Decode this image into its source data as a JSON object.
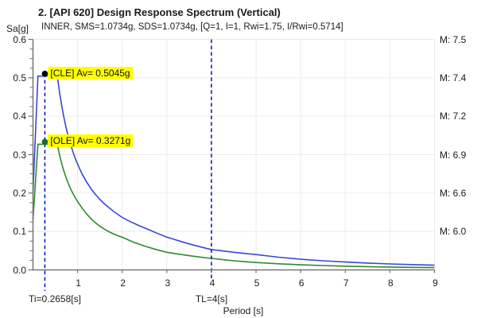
{
  "chart_data": {
    "type": "line",
    "title": "2. [API 620] Design Response Spectrum (Vertical)",
    "subtitle": "INNER, SMS=1.0734g, SDS=1.0734g, [Q=1, I=1, Rwi=1.75, I/Rwi=0.5714]",
    "xlabel": "Period [s]",
    "ylabel": "Sa[g]",
    "xlim": [
      0,
      9
    ],
    "ylim": [
      0,
      0.6
    ],
    "x_ticks": [
      1,
      2,
      3,
      4,
      5,
      6,
      7,
      8,
      9
    ],
    "y_ticks": [
      "0.0",
      "0.1",
      "0.2",
      "0.3",
      "0.4",
      "0.5",
      "0.6"
    ],
    "y_minor_step": 0.025,
    "grid": true,
    "right_labels": [
      {
        "value": 0.6,
        "label": "M: 7.5"
      },
      {
        "value": 0.5,
        "label": "M: 7.4"
      },
      {
        "value": 0.4,
        "label": "M: 7.2"
      },
      {
        "value": 0.3,
        "label": "M: 6.9"
      },
      {
        "value": 0.2,
        "label": "M: 6.6"
      },
      {
        "value": 0.1,
        "label": "M: 6.0"
      }
    ],
    "series": [
      {
        "name": "CLE",
        "color": "#3a46d8",
        "points": [
          [
            0,
            0.2018
          ],
          [
            0.11,
            0.5045
          ],
          [
            0.545,
            0.5045
          ],
          [
            0.575,
            0.4783
          ],
          [
            0.6,
            0.4583
          ],
          [
            0.625,
            0.44
          ],
          [
            0.65,
            0.4231
          ],
          [
            0.675,
            0.4074
          ],
          [
            0.7,
            0.3929
          ],
          [
            0.725,
            0.3793
          ],
          [
            0.75,
            0.3667
          ],
          [
            0.775,
            0.3548
          ],
          [
            0.8,
            0.3438
          ],
          [
            0.85,
            0.3235
          ],
          [
            0.9,
            0.3056
          ],
          [
            0.95,
            0.2895
          ],
          [
            1,
            0.275
          ],
          [
            1.1,
            0.25
          ],
          [
            1.2,
            0.2292
          ],
          [
            1.3,
            0.2115
          ],
          [
            1.4,
            0.1964
          ],
          [
            1.5,
            0.1833
          ],
          [
            1.6,
            0.1719
          ],
          [
            1.8,
            0.1528
          ],
          [
            2,
            0.1365
          ],
          [
            2.2,
            0.1245
          ],
          [
            2.4,
            0.114
          ],
          [
            2.6,
            0.1045
          ],
          [
            2.8,
            0.0945
          ],
          [
            3,
            0.0855
          ],
          [
            3.2,
            0.078
          ],
          [
            3.4,
            0.071
          ],
          [
            3.6,
            0.0645
          ],
          [
            3.8,
            0.0585
          ],
          [
            4,
            0.053
          ],
          [
            4.25,
            0.0495
          ],
          [
            4.5,
            0.046
          ],
          [
            4.75,
            0.0428
          ],
          [
            5,
            0.04
          ],
          [
            5.5,
            0.0331
          ],
          [
            6,
            0.0278
          ],
          [
            6.5,
            0.0237
          ],
          [
            7,
            0.0204
          ],
          [
            7.5,
            0.0178
          ],
          [
            8,
            0.0156
          ],
          [
            8.5,
            0.0138
          ],
          [
            9,
            0.0123
          ]
        ]
      },
      {
        "name": "OLE",
        "color": "#2e8b2e",
        "points": [
          [
            0,
            0.1308
          ],
          [
            0.11,
            0.3271
          ],
          [
            0.545,
            0.3271
          ],
          [
            0.575,
            0.3096
          ],
          [
            0.6,
            0.2967
          ],
          [
            0.625,
            0.2848
          ],
          [
            0.65,
            0.2738
          ],
          [
            0.675,
            0.2637
          ],
          [
            0.7,
            0.2543
          ],
          [
            0.725,
            0.2455
          ],
          [
            0.75,
            0.2373
          ],
          [
            0.775,
            0.2297
          ],
          [
            0.8,
            0.2225
          ],
          [
            0.85,
            0.2094
          ],
          [
            0.9,
            0.1978
          ],
          [
            0.95,
            0.1874
          ],
          [
            1,
            0.178
          ],
          [
            1.1,
            0.161
          ],
          [
            1.2,
            0.146
          ],
          [
            1.3,
            0.1335
          ],
          [
            1.4,
            0.1225
          ],
          [
            1.5,
            0.1135
          ],
          [
            1.6,
            0.106
          ],
          [
            1.7,
            0.0995
          ],
          [
            1.8,
            0.094
          ],
          [
            1.9,
            0.0892
          ],
          [
            2,
            0.085
          ],
          [
            2.25,
            0.0722
          ],
          [
            2.5,
            0.062
          ],
          [
            2.75,
            0.0533
          ],
          [
            3,
            0.046
          ],
          [
            3.25,
            0.0412
          ],
          [
            3.5,
            0.037
          ],
          [
            3.75,
            0.0333
          ],
          [
            4,
            0.03
          ],
          [
            4.25,
            0.0266
          ],
          [
            4.5,
            0.0237
          ],
          [
            4.75,
            0.0213
          ],
          [
            5,
            0.0192
          ],
          [
            5.5,
            0.0159
          ],
          [
            6,
            0.0133
          ],
          [
            6.5,
            0.0114
          ],
          [
            7,
            0.0098
          ],
          [
            7.5,
            0.0085
          ],
          [
            8,
            0.0075
          ],
          [
            8.5,
            0.0066
          ],
          [
            9,
            0.0059
          ]
        ]
      }
    ],
    "markers": [
      {
        "series": "CLE",
        "t": 0.2658,
        "sa": 0.5045,
        "color": "#000000",
        "label": "[CLE] Av= 0.5045g"
      },
      {
        "series": "OLE",
        "t": 0.2658,
        "sa": 0.3271,
        "color": "#157015",
        "label": "[OLE] Av= 0.3271g"
      }
    ],
    "vlines": [
      {
        "t": 0.2658,
        "label": "Ti=0.2658[s]",
        "from_sa": 0.5045,
        "color": "#000ccf"
      },
      {
        "t": 4,
        "label": "TL=4[s]",
        "from_sa": 0.6,
        "color": "#000ccf"
      }
    ],
    "style": {
      "grid_color": "#ebebeb",
      "axis_color": "#757575",
      "annotation_bg": "#ffff00",
      "text_color": "#1b1b1b"
    }
  }
}
